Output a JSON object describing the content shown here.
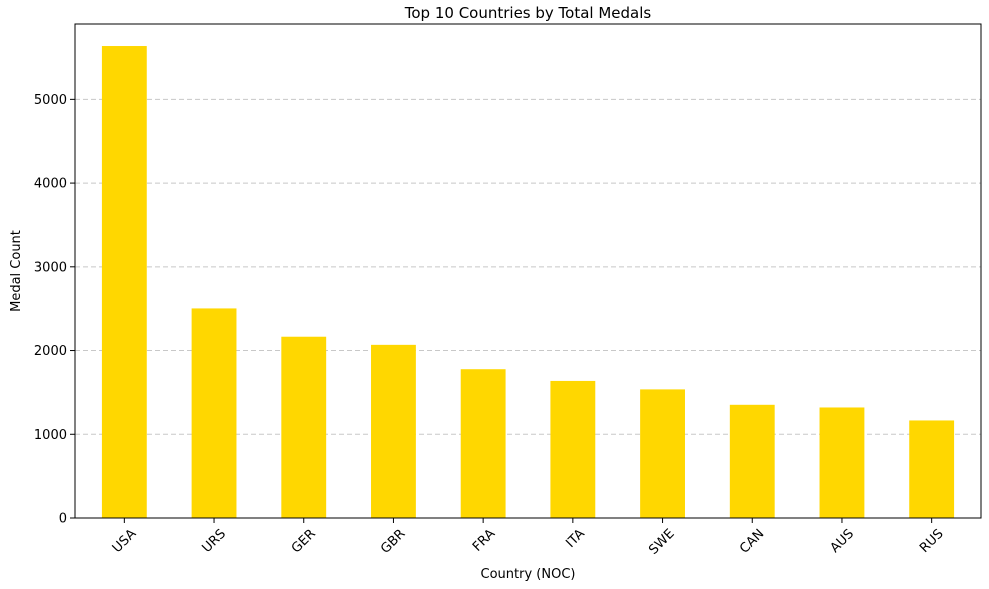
{
  "chart_data": {
    "type": "bar",
    "title": "Top 10 Countries by Total Medals",
    "xlabel": "Country (NOC)",
    "ylabel": "Medal Count",
    "categories": [
      "USA",
      "URS",
      "GER",
      "GBR",
      "FRA",
      "ITA",
      "SWE",
      "CAN",
      "AUS",
      "RUS"
    ],
    "values": [
      5637,
      2503,
      2165,
      2068,
      1777,
      1637,
      1536,
      1352,
      1320,
      1165
    ],
    "ylim": [
      0,
      5900
    ],
    "yticks": [
      0,
      1000,
      2000,
      3000,
      4000,
      5000
    ],
    "ytick_labels": [
      "0",
      "1000",
      "2000",
      "3000",
      "4000",
      "5000"
    ],
    "grid": "y-dashed",
    "legend": "none",
    "bar_color": "#FFD700",
    "grid_color": "#c8c8c8",
    "xtick_rotation_deg": 45
  }
}
